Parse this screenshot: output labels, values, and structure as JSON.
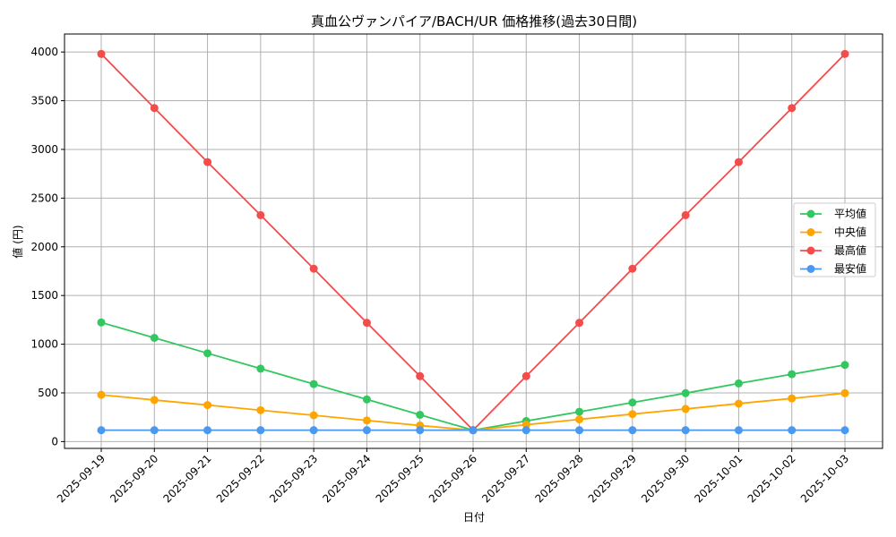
{
  "chart_data": {
    "type": "line",
    "title": "真血公ヴァンパイア/BACH/UR 価格推移(過去30日間)",
    "xlabel": "日付",
    "ylabel": "値 (円)",
    "ylim": [
      -70,
      4185
    ],
    "yticks": [
      0,
      500,
      1000,
      1500,
      2000,
      2500,
      3000,
      3500,
      4000
    ],
    "grid": true,
    "legend_position": "right",
    "categories": [
      "2025-09-19",
      "2025-09-20",
      "2025-09-21",
      "2025-09-22",
      "2025-09-23",
      "2025-09-24",
      "2025-09-25",
      "2025-09-26",
      "2025-09-27",
      "2025-09-28",
      "2025-09-29",
      "2025-09-30",
      "2025-10-01",
      "2025-10-02",
      "2025-10-03"
    ],
    "series": [
      {
        "name": "平均値",
        "color": "#33c760",
        "values": [
          1223,
          1065,
          907,
          749,
          591,
          433,
          275,
          117,
          211,
          306,
          401,
          497,
          597,
          692,
          787
        ]
      },
      {
        "name": "中央値",
        "color": "#ffa500",
        "values": [
          480,
          427,
          375,
          322,
          270,
          217,
          165,
          117,
          173,
          228,
          282,
          335,
          390,
          443,
          497
        ]
      },
      {
        "name": "最高値",
        "color": "#f44b4b",
        "values": [
          3980,
          3425,
          2870,
          2325,
          1775,
          1220,
          672,
          117,
          672,
          1220,
          1775,
          2325,
          2870,
          3425,
          3980
        ]
      },
      {
        "name": "最安値",
        "color": "#4a98f0",
        "values": [
          117,
          117,
          117,
          117,
          117,
          117,
          117,
          117,
          117,
          117,
          117,
          117,
          117,
          117,
          117
        ]
      }
    ]
  }
}
